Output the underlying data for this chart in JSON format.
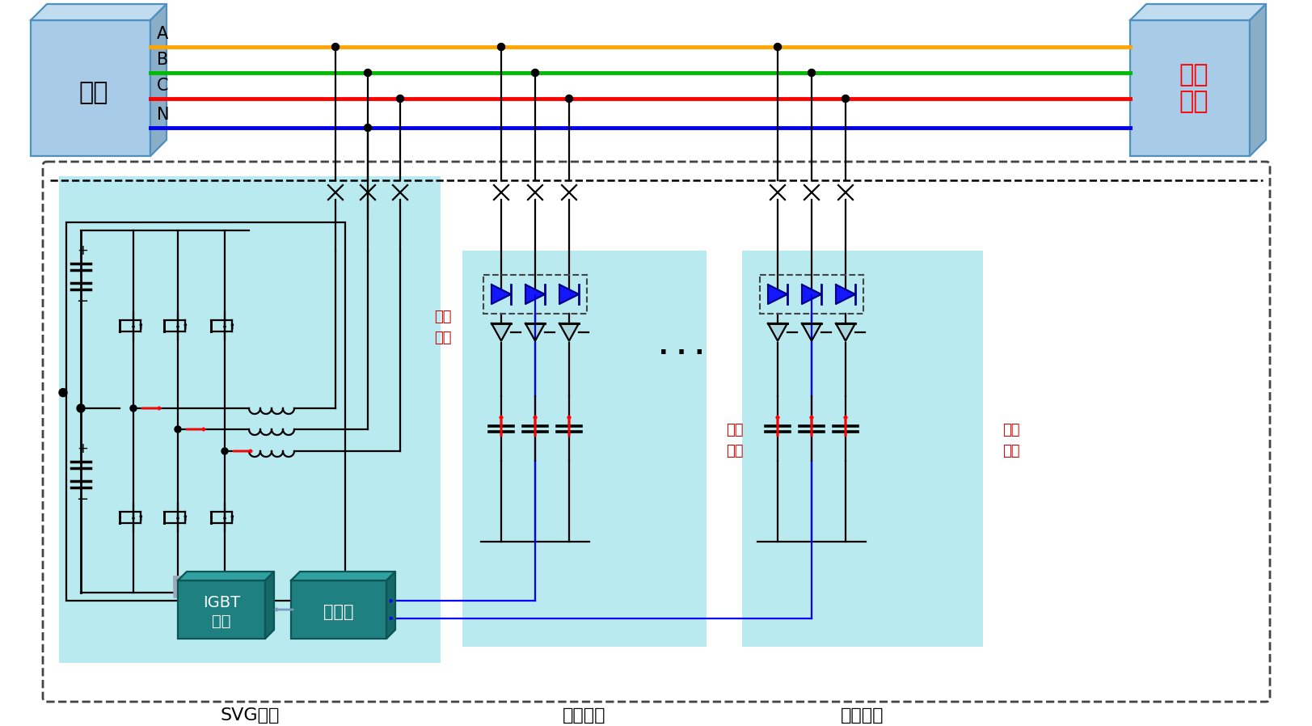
{
  "bg_color": "#ffffff",
  "line_A_color": "#FFA500",
  "line_B_color": "#00BB00",
  "line_C_color": "#FF0000",
  "line_N_color": "#0000EE",
  "box_face_color": "#A8CCE8",
  "box_top_color": "#C0DCEE",
  "box_side_color": "#8AAEC8",
  "box_edge_color": "#5090C0",
  "teal_face": "#1E8080",
  "teal_top": "#30A0A0",
  "teal_side": "#166868",
  "teal_edge": "#0D5555",
  "light_cyan": "#B8EAF0",
  "dashed_color": "#444444",
  "red_color": "#FF0000",
  "dark_red": "#CC0000",
  "blue_color": "#0000FF",
  "navy_color": "#000088",
  "label_grid": "电网",
  "label_load_line1": "感性",
  "label_load_line2": "负载",
  "label_svg": "SVG支路",
  "label_cap1": "电容支路",
  "label_cap2": "电容支路",
  "label_igbt_line1": "IGBT",
  "label_igbt_line2": "驱动",
  "label_ctrl": "控制器",
  "label_cap_curr_line1": "容性",
  "label_cap_curr_line2": "电流",
  "bus_A": "A",
  "bus_B": "B",
  "bus_C": "C",
  "bus_N": "N",
  "dots": "···"
}
